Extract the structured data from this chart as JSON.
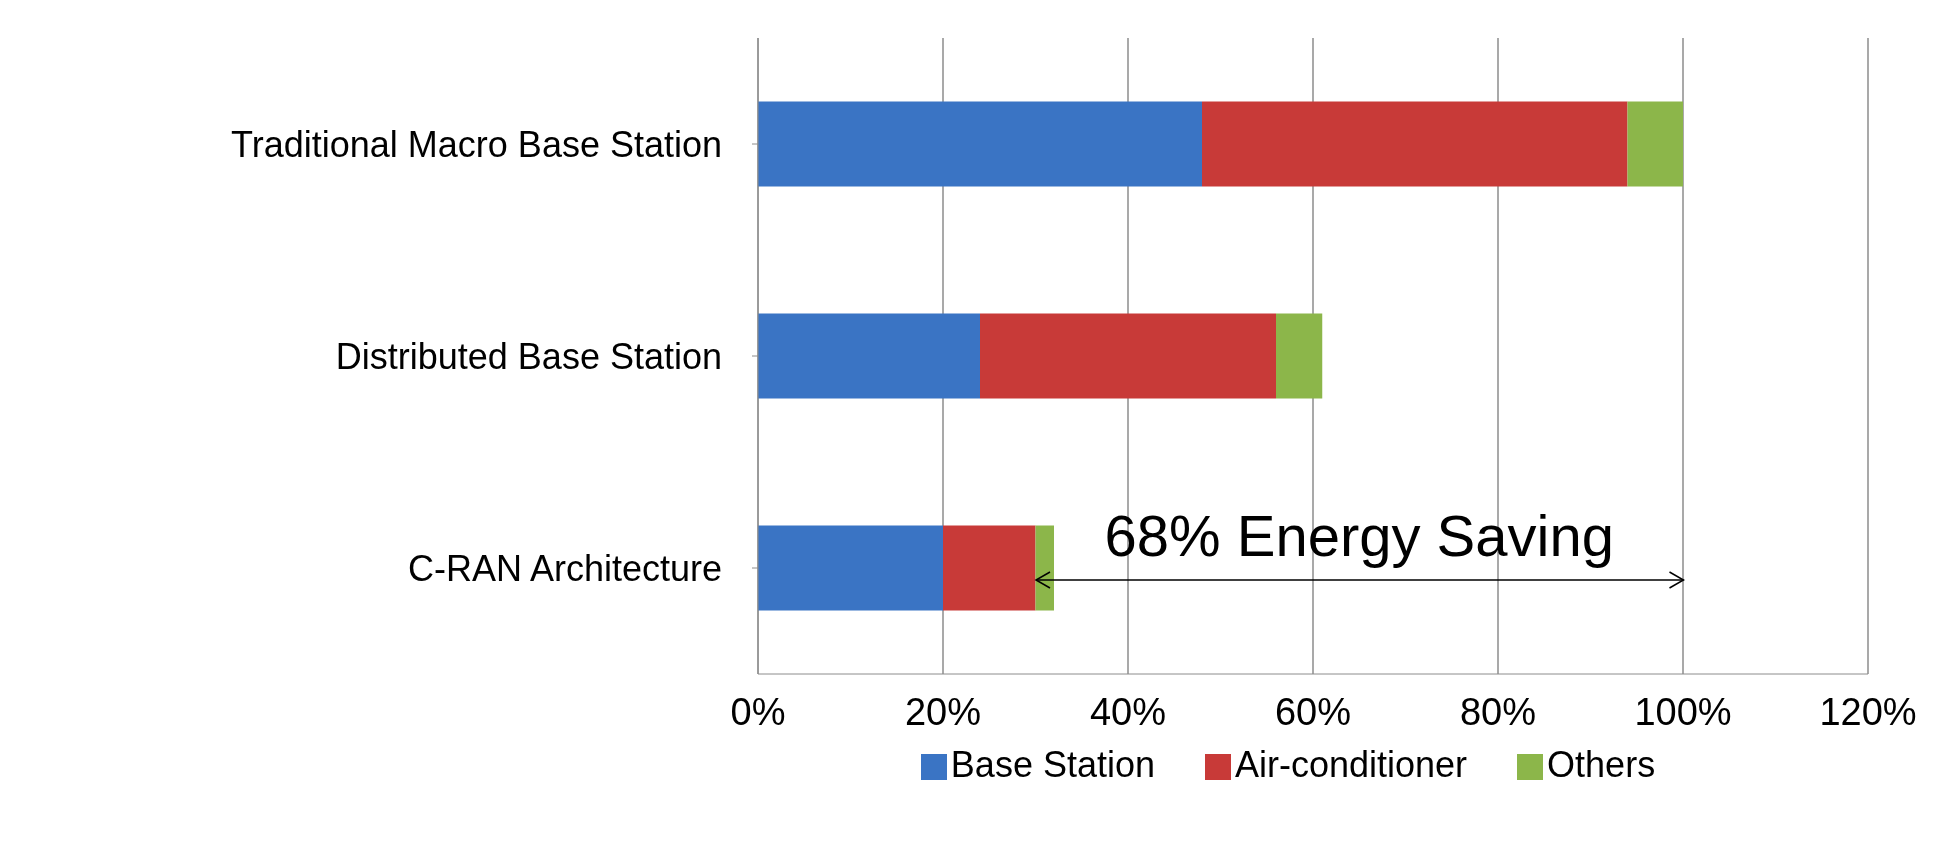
{
  "chart_data": {
    "type": "bar",
    "orientation": "horizontal",
    "stacked": true,
    "categories": [
      "Traditional Macro Base Station",
      "Distributed Base Station",
      "C-RAN Architecture"
    ],
    "series": [
      {
        "name": "Base Station",
        "color": "#3a74c4",
        "values": [
          48,
          24,
          20
        ]
      },
      {
        "name": "Air-conditioner",
        "color": "#c83a38",
        "values": [
          46,
          32,
          10
        ]
      },
      {
        "name": "Others",
        "color": "#8cb64a",
        "values": [
          6,
          5,
          2
        ]
      }
    ],
    "xlim": [
      0,
      120
    ],
    "xticks": [
      {
        "value": 0,
        "label": "0%"
      },
      {
        "value": 20,
        "label": "20%"
      },
      {
        "value": 40,
        "label": "40%"
      },
      {
        "value": 60,
        "label": "60%"
      },
      {
        "value": 80,
        "label": "80%"
      },
      {
        "value": 100,
        "label": "100%"
      },
      {
        "value": 120,
        "label": "120%"
      }
    ],
    "grid": "x",
    "legend": "bottom",
    "annotations": [
      "68% Energy Saving"
    ]
  }
}
